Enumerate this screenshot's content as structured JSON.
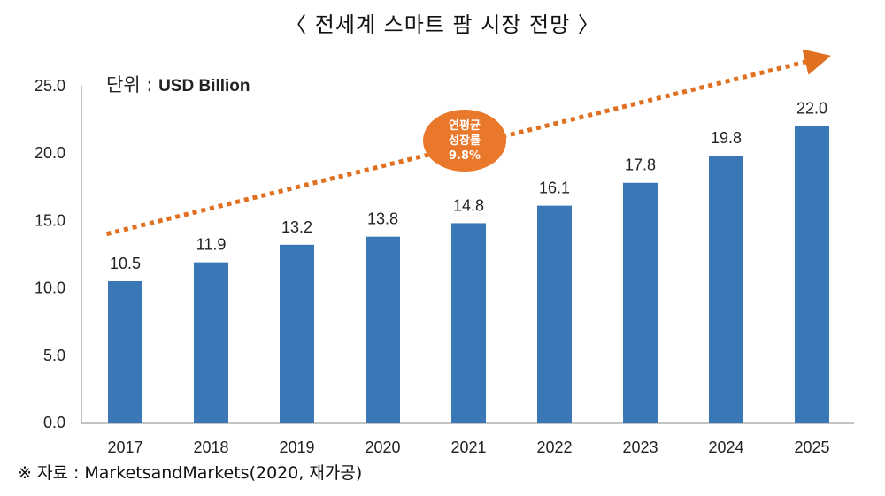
{
  "title": "〈 전세계 스마트 팜 시장 전망 〉",
  "unit": {
    "prefix": "단위 : ",
    "value": "USD Billion"
  },
  "badge": {
    "line1": "연평균",
    "line2": "성장률",
    "line3": "9.8%"
  },
  "source": "※ 자료 : MarketsandMarkets(2020, 재가공)",
  "colors": {
    "bar": "#3a77b7",
    "trend": "#e07020",
    "badge": "#e9782b"
  },
  "chart_data": {
    "type": "bar",
    "title": "〈 전세계 스마트 팜 시장 전망 〉",
    "xlabel": "",
    "ylabel": "USD Billion",
    "categories": [
      "2017",
      "2018",
      "2019",
      "2020",
      "2021",
      "2022",
      "2023",
      "2024",
      "2025"
    ],
    "values": [
      10.5,
      11.9,
      13.2,
      13.8,
      14.8,
      16.1,
      17.8,
      19.8,
      22.0
    ],
    "value_labels": [
      "10.5",
      "11.9",
      "13.2",
      "13.8",
      "14.8",
      "16.1",
      "17.8",
      "19.8",
      "22.0"
    ],
    "yticks": [
      "0.0",
      "5.0",
      "10.0",
      "15.0",
      "20.0",
      "25.0"
    ],
    "ylim": [
      0,
      25
    ],
    "grid": false,
    "trend": {
      "label": "연평균 성장률 9.8%",
      "start_value": 14.0,
      "end_value": 27.0
    }
  }
}
